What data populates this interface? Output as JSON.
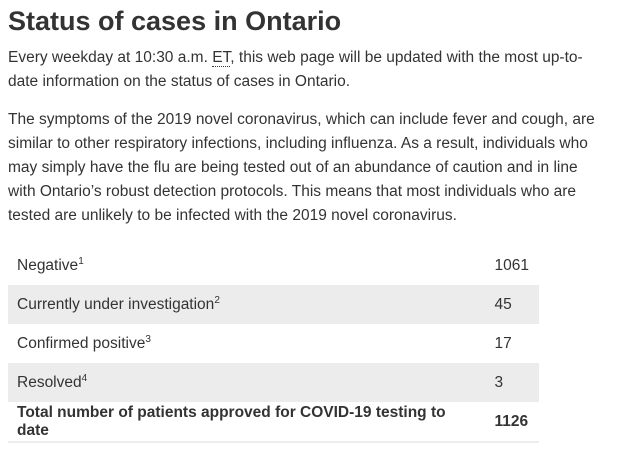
{
  "title": "Status of cases in Ontario",
  "intro": {
    "before": "Every weekday at 10:30 a.m.",
    "abbr": "ET",
    "after": ", this web page will be updated with the most up-to-date information on the status of cases in Ontario."
  },
  "paragraph": "The symptoms of the 2019 novel coronavirus, which can include fever and cough, are similar to other respiratory infections, including influenza. As a result, individuals who may simply have the flu are being tested out of an abundance of caution and in line with Ontario’s robust detection protocols. This means that most individuals who are tested are unlikely to be infected with the 2019 novel coronavirus.",
  "table": {
    "rows": [
      {
        "label": "Negative",
        "note": "1",
        "value": 1061
      },
      {
        "label": "Currently under investigation",
        "note": "2",
        "value": 45
      },
      {
        "label": "Confirmed positive",
        "note": "3",
        "value": 17
      },
      {
        "label": "Resolved",
        "note": "4",
        "value": 3
      },
      {
        "label": "Total number of patients approved for COVID-19 testing to date",
        "value": 1126
      }
    ]
  }
}
